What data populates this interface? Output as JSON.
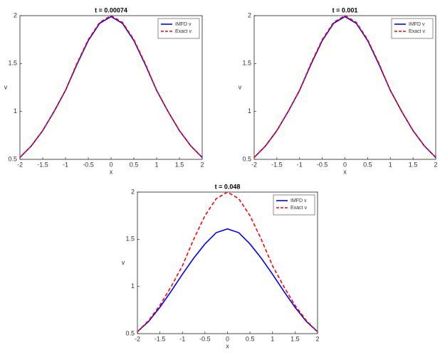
{
  "chart_data": [
    {
      "type": "line",
      "title": "t = 0.00074",
      "xlabel": "x",
      "ylabel": "v",
      "x": [
        -2,
        -1.75,
        -1.5,
        -1.25,
        -1,
        -0.75,
        -0.5,
        -0.25,
        0,
        0.25,
        0.5,
        0.75,
        1,
        1.25,
        1.5,
        1.75,
        2
      ],
      "series": [
        {
          "name": "IMFD v",
          "color": "#0000ff",
          "style": "solid",
          "values": [
            0.52,
            0.64,
            0.8,
            1.0,
            1.22,
            1.49,
            1.74,
            1.92,
            1.99,
            1.92,
            1.74,
            1.49,
            1.22,
            1.0,
            0.8,
            0.64,
            0.52
          ]
        },
        {
          "name": "Exact v",
          "color": "#ff0000",
          "style": "dashed",
          "values": [
            0.52,
            0.64,
            0.8,
            1.0,
            1.22,
            1.5,
            1.75,
            1.93,
            2.0,
            1.93,
            1.75,
            1.5,
            1.22,
            1.0,
            0.8,
            0.64,
            0.52
          ]
        }
      ],
      "xlim": [
        -2,
        2
      ],
      "ylim": [
        0.5,
        2
      ],
      "xticks": [
        -2,
        -1.5,
        -1,
        -0.5,
        0,
        0.5,
        1,
        1.5,
        2
      ],
      "yticks": [
        0.5,
        1,
        1.5,
        2
      ],
      "legend": "northeast"
    },
    {
      "type": "line",
      "title": "t = 0.001",
      "xlabel": "x",
      "ylabel": "v",
      "x": [
        -2,
        -1.75,
        -1.5,
        -1.25,
        -1,
        -0.75,
        -0.5,
        -0.25,
        0,
        0.25,
        0.5,
        0.75,
        1,
        1.25,
        1.5,
        1.75,
        2
      ],
      "series": [
        {
          "name": "IMFD v",
          "color": "#0000ff",
          "style": "solid",
          "values": [
            0.52,
            0.64,
            0.8,
            1.0,
            1.22,
            1.49,
            1.74,
            1.92,
            1.99,
            1.92,
            1.74,
            1.49,
            1.22,
            1.0,
            0.8,
            0.64,
            0.52
          ]
        },
        {
          "name": "Exact  v",
          "color": "#ff0000",
          "style": "dashed",
          "values": [
            0.52,
            0.64,
            0.8,
            1.0,
            1.22,
            1.5,
            1.75,
            1.93,
            2.0,
            1.93,
            1.75,
            1.5,
            1.22,
            1.0,
            0.8,
            0.64,
            0.52
          ]
        }
      ],
      "xlim": [
        -2,
        2
      ],
      "ylim": [
        0.5,
        2
      ],
      "xticks": [
        -2,
        -1.5,
        -1,
        -0.5,
        0,
        0.5,
        1,
        1.5,
        2
      ],
      "yticks": [
        0.5,
        1,
        1.5,
        2
      ],
      "legend": "northeast"
    },
    {
      "type": "line",
      "title": "t = 0.048",
      "xlabel": "x",
      "ylabel": "v",
      "x": [
        -2,
        -1.75,
        -1.5,
        -1.25,
        -1,
        -0.75,
        -0.5,
        -0.25,
        0,
        0.25,
        0.5,
        0.75,
        1,
        1.25,
        1.5,
        1.75,
        2
      ],
      "series": [
        {
          "name": "IMFD v",
          "color": "#0000ff",
          "style": "solid",
          "values": [
            0.52,
            0.63,
            0.78,
            0.95,
            1.13,
            1.3,
            1.45,
            1.57,
            1.61,
            1.57,
            1.45,
            1.3,
            1.13,
            0.95,
            0.78,
            0.63,
            0.52
          ]
        },
        {
          "name": "Exact v",
          "color": "#ff0000",
          "style": "dashed",
          "values": [
            0.52,
            0.64,
            0.8,
            1.0,
            1.22,
            1.5,
            1.75,
            1.93,
            2.0,
            1.93,
            1.75,
            1.5,
            1.22,
            1.0,
            0.8,
            0.64,
            0.52
          ]
        }
      ],
      "xlim": [
        -2,
        2
      ],
      "ylim": [
        0.5,
        2
      ],
      "xticks": [
        -2,
        -1.5,
        -1,
        -0.5,
        0,
        0.5,
        1,
        1.5,
        2
      ],
      "yticks": [
        0.5,
        1,
        1.5,
        2
      ],
      "legend": "northeast"
    }
  ]
}
